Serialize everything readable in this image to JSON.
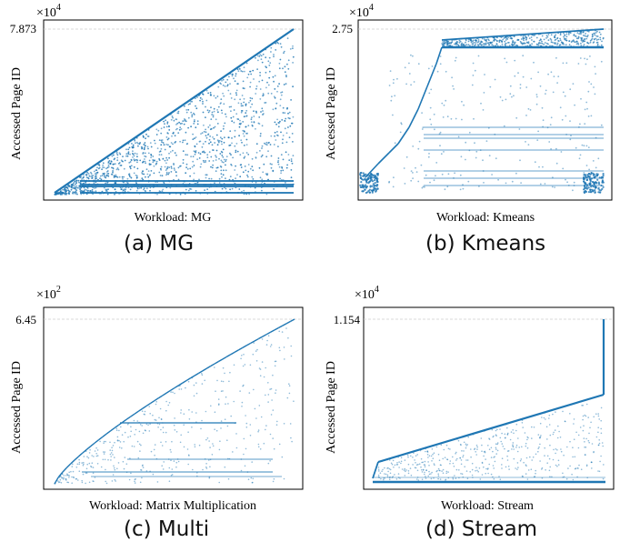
{
  "chart_data": [
    {
      "type": "scatter",
      "id": "mg",
      "xlabel": "Workload: MG",
      "ylabel": "Accessed Page ID",
      "exponent_label": "×10^4",
      "exponent_base": "×10",
      "exponent_power": "4",
      "ytick_label": "7.873",
      "ylim": [
        0,
        7.873
      ],
      "grid": "dashed horizontal",
      "caption": "(a) MG",
      "color": "#1f77b4",
      "pattern": "diagonal upper edge from low to max with dense fill below and horizontal bands near bottom"
    },
    {
      "type": "scatter",
      "id": "kmeans",
      "xlabel": "Workload: Kmeans",
      "ylabel": "Accessed Page ID",
      "exponent_label": "×10^4",
      "exponent_base": "×10",
      "exponent_power": "4",
      "ytick_label": "2.75",
      "ylim": [
        0,
        2.75
      ],
      "grid": "dashed horizontal",
      "caption": "(b) Kmeans",
      "color": "#1f77b4",
      "pattern": "low blocks at start, steep step rise, then dense band near top with sparse points below"
    },
    {
      "type": "scatter",
      "id": "multi",
      "xlabel": "Workload: Matrix Multiplication",
      "ylabel": "Accessed Page ID",
      "exponent_label": "×10^2",
      "exponent_base": "×10",
      "exponent_power": "2",
      "ytick_label": "6.45",
      "ylim": [
        0,
        6.45
      ],
      "grid": "dashed horizontal",
      "caption": "(c) Multi",
      "color": "#1f77b4",
      "pattern": "concave curve rising to max with sparse scattered points and horizontal dashes below"
    },
    {
      "type": "scatter",
      "id": "stream",
      "xlabel": "Workload: Stream",
      "ylabel": "Accessed Page ID",
      "exponent_label": "×10^4",
      "exponent_base": "×10",
      "exponent_power": "4",
      "ytick_label": "1.154",
      "ylim": [
        0,
        1.154
      ],
      "grid": "dashed horizontal",
      "caption": "(d) Stream",
      "color": "#1f77b4",
      "pattern": "linear rise to ~0.6 of max, then vertical jump to max at end; bottom band line"
    }
  ]
}
